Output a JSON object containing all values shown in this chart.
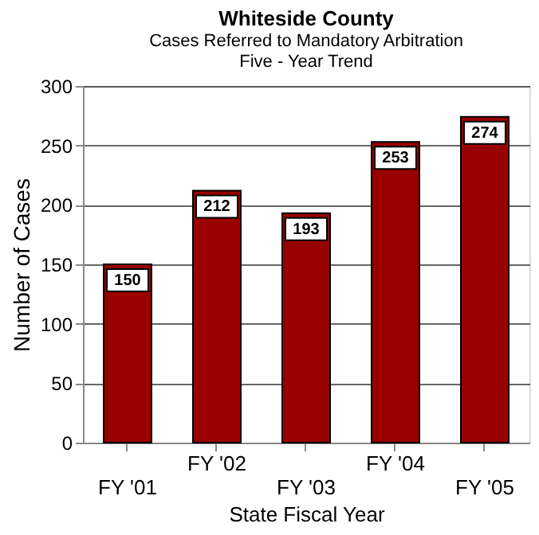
{
  "chart_data": {
    "type": "bar",
    "title": "Whiteside County",
    "subtitle": "Cases Referred to Mandatory Arbitration\nFive - Year Trend",
    "xlabel": "State Fiscal Year",
    "ylabel": "Number of Cases",
    "categories": [
      "FY '01",
      "FY '02",
      "FY '03",
      "FY '04",
      "FY '05"
    ],
    "values": [
      150,
      212,
      193,
      253,
      274
    ],
    "color": "#990000",
    "ylim": [
      0,
      300
    ],
    "yticks": [
      0,
      50,
      100,
      150,
      200,
      250,
      300
    ],
    "grid": "y",
    "data_labels": true
  }
}
